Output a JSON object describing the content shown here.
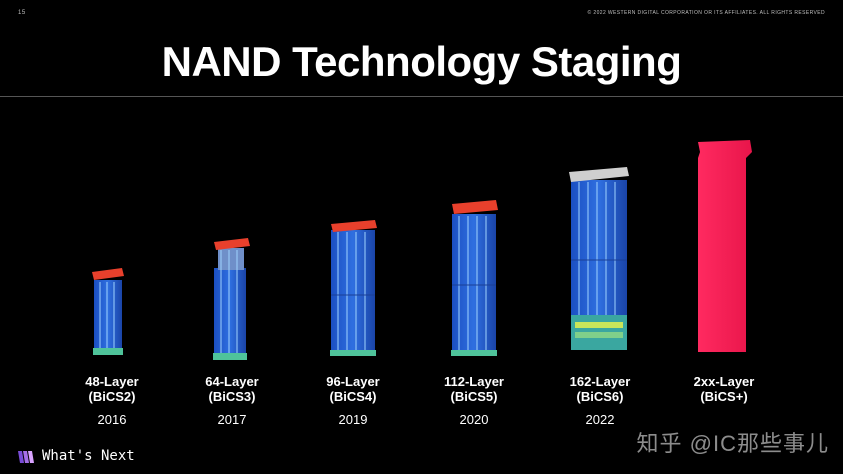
{
  "header": {
    "page_number": "15",
    "copyright": "© 2022 WESTERN DIGITAL CORPORATION OR ITS AFFILIATES. ALL RIGHTS RESERVED"
  },
  "slide": {
    "title": "NAND Technology Staging"
  },
  "colors": {
    "stack_blue": "#2f6fe0",
    "stack_highlight": "#9fd3ff",
    "cap_red": "#e8402c",
    "future_pink": "#ff1f55",
    "background": "#000000"
  },
  "generations": [
    {
      "layer": "48-Layer",
      "bics": "(BiCS2)",
      "year": "2016"
    },
    {
      "layer": "64-Layer",
      "bics": "(BiCS3)",
      "year": "2017"
    },
    {
      "layer": "96-Layer",
      "bics": "(BiCS4)",
      "year": "2019"
    },
    {
      "layer": "112-Layer",
      "bics": "(BiCS5)",
      "year": "2020"
    },
    {
      "layer": "162-Layer",
      "bics": "(BiCS6)",
      "year": "2022"
    },
    {
      "layer": "2xx-Layer",
      "bics": "(BiCS+)",
      "year": ""
    }
  ],
  "footer": {
    "logo_icon": "what-next-logo-icon",
    "label": "What's Next"
  },
  "watermark": "知乎 @IC那些事儿"
}
